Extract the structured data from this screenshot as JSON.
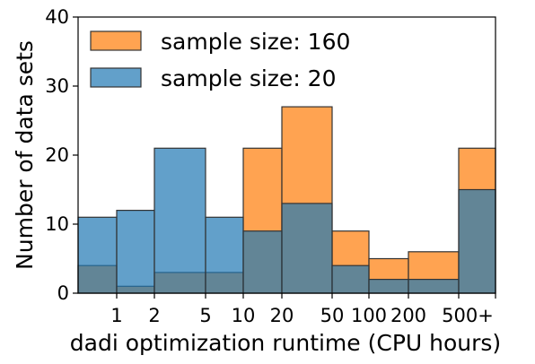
{
  "chart_data": {
    "type": "bar",
    "xlabel": "dadi optimization runtime (CPU hours)",
    "ylabel": "Number of data sets",
    "ylim": [
      0,
      40
    ],
    "yticks": [
      "0",
      "10",
      "20",
      "30",
      "40"
    ],
    "bin_tick_labels": [
      "1",
      "2",
      "5",
      "10",
      "20",
      "50",
      "100",
      "200",
      "500+"
    ],
    "bins": [
      "<1",
      "1-2",
      "2-5",
      "5-10",
      "10-20",
      "20-50",
      "50-100",
      "100-200",
      "200-500",
      "500+"
    ],
    "series": [
      {
        "name": "sample size: 160",
        "color": "#ff7f0e",
        "values": [
          4,
          1,
          3,
          3,
          21,
          27,
          9,
          5,
          6,
          21
        ]
      },
      {
        "name": "sample size: 20",
        "color": "#1f77b4",
        "values": [
          11,
          12,
          21,
          11,
          9,
          13,
          4,
          2,
          2,
          15
        ]
      }
    ],
    "legend_position": "top-left",
    "overlap_color": "#5f7f91",
    "grid": false
  }
}
